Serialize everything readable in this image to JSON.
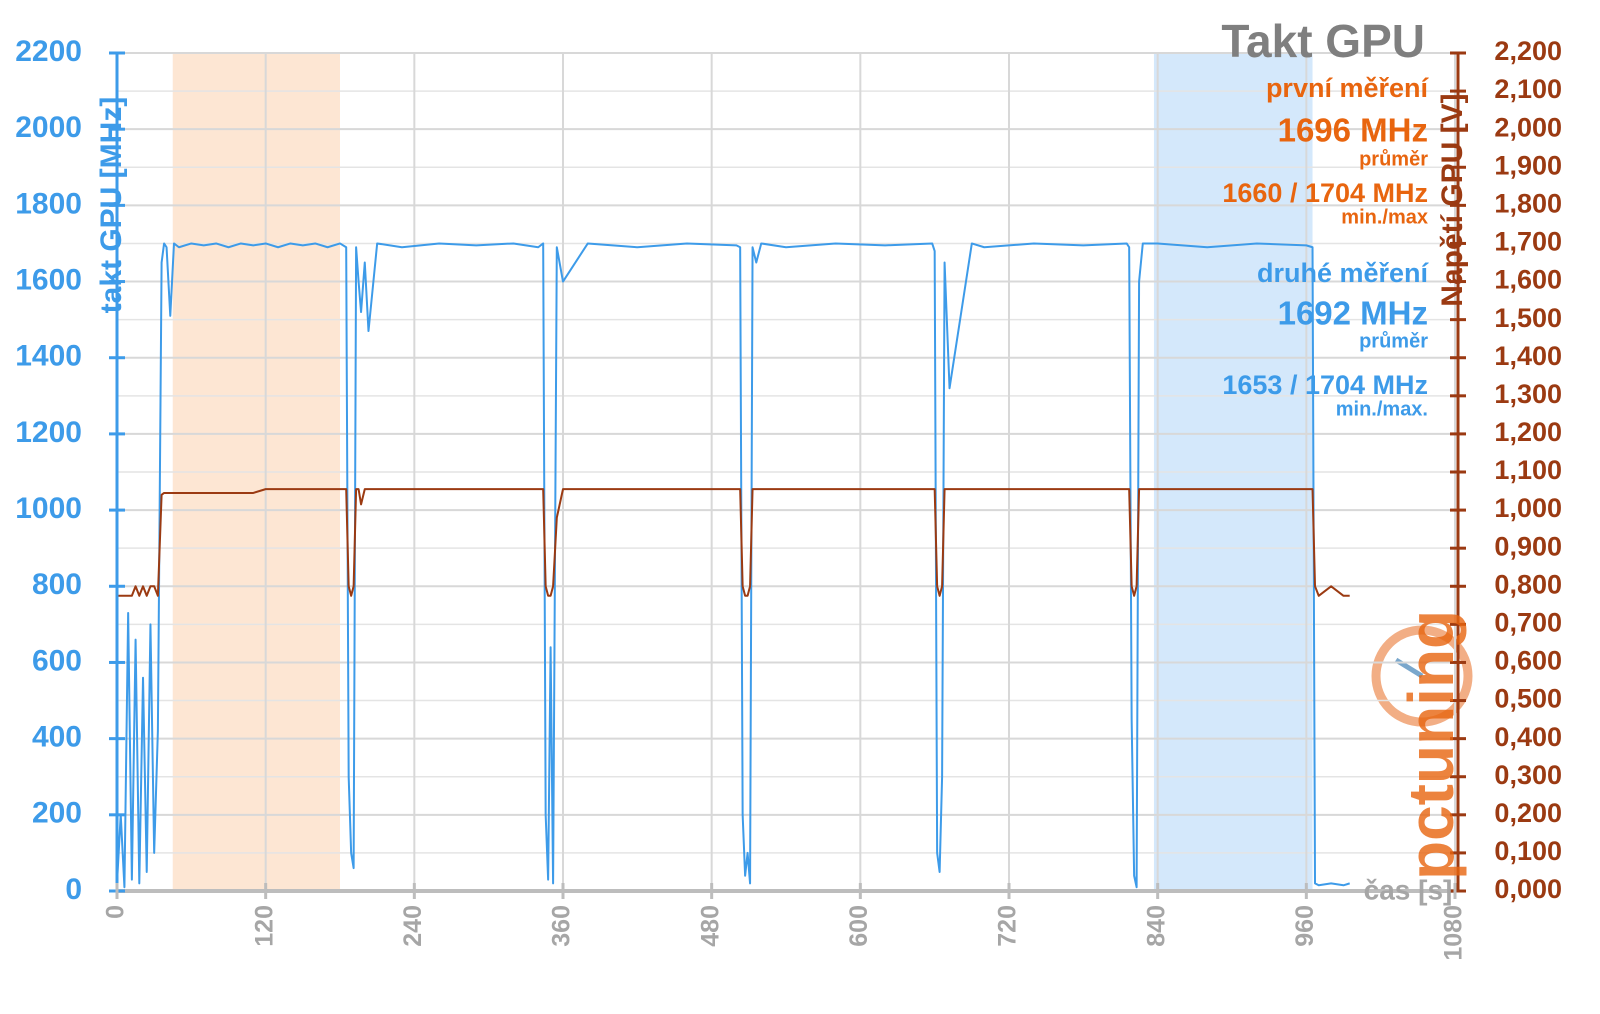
{
  "chart_data": {
    "type": "line",
    "title": "Takt GPU",
    "x_label": "čas [s]",
    "y_label": "takt GPU [MHz]",
    "y2_label": "Napětí GPU [V]",
    "logo": "pctuning",
    "annotations": [
      {
        "text": "první měření",
        "color": "#e8650f"
      },
      {
        "text": "1696 MHz",
        "color": "#e8650f"
      },
      {
        "text": "průměr",
        "color": "#e8650f"
      },
      {
        "text": "1660 / 1704 MHz",
        "color": "#e8650f"
      },
      {
        "text": "min./max",
        "color": "#e8650f"
      },
      {
        "text": "druhé měření",
        "color": "#3d9be9"
      },
      {
        "text": "1692 MHz",
        "color": "#3d9be9"
      },
      {
        "text": "průměr",
        "color": "#3d9be9"
      },
      {
        "text": "1653 / 1704 MHz",
        "color": "#3d9be9"
      },
      {
        "text": "min./max.",
        "color": "#3d9be9"
      }
    ],
    "highlights": [
      {
        "start": 45,
        "end": 180,
        "color": "#fde6d3"
      },
      {
        "start": 837,
        "end": 965,
        "color": "#d4e8fb"
      }
    ],
    "grid": true,
    "xlim": [
      0,
      1080
    ],
    "xticks": [
      0,
      120,
      240,
      360,
      480,
      600,
      720,
      840,
      960,
      1080
    ],
    "ylim": [
      0,
      2200
    ],
    "yticks": [
      0,
      200,
      400,
      600,
      800,
      1000,
      1200,
      1400,
      1600,
      1800,
      2000,
      2200
    ],
    "y2lim": [
      0,
      2.2
    ],
    "y2ticks": [
      {
        "value": 0,
        "label": "0,000"
      },
      {
        "value": 0.1,
        "label": "0,100"
      },
      {
        "value": 0.2,
        "label": "0,200"
      },
      {
        "value": 0.3,
        "label": "0,300"
      },
      {
        "value": 0.4,
        "label": "0,400"
      },
      {
        "value": 0.5,
        "label": "0,500"
      },
      {
        "value": 0.6,
        "label": "0,600"
      },
      {
        "value": 0.7,
        "label": "0,700"
      },
      {
        "value": 0.8,
        "label": "0,800"
      },
      {
        "value": 0.9,
        "label": "0,900"
      },
      {
        "value": 1.0,
        "label": "1,000"
      },
      {
        "value": 1.1,
        "label": "1,100"
      },
      {
        "value": 1.2,
        "label": "1,200"
      },
      {
        "value": 1.3,
        "label": "1,300"
      },
      {
        "value": 1.4,
        "label": "1,400"
      },
      {
        "value": 1.5,
        "label": "1,500"
      },
      {
        "value": 1.6,
        "label": "1,600"
      },
      {
        "value": 1.7,
        "label": "1,700"
      },
      {
        "value": 1.8,
        "label": "1,800"
      },
      {
        "value": 1.9,
        "label": "1,900"
      },
      {
        "value": 2.0,
        "label": "2,000"
      },
      {
        "value": 2.1,
        "label": "2,100"
      },
      {
        "value": 2.2,
        "label": "2,200"
      }
    ],
    "x": [
      0,
      3,
      6,
      9,
      12,
      15,
      18,
      21,
      24,
      27,
      30,
      33,
      36,
      38,
      40,
      43,
      46,
      50,
      60,
      70,
      80,
      90,
      100,
      110,
      120,
      130,
      140,
      150,
      160,
      170,
      180,
      185,
      187,
      189,
      191,
      193,
      195,
      197,
      200,
      203,
      210,
      230,
      260,
      290,
      320,
      340,
      344,
      346,
      348,
      350,
      352,
      355,
      360,
      380,
      420,
      460,
      500,
      503,
      505,
      507,
      509,
      511,
      513,
      516,
      520,
      540,
      580,
      620,
      658,
      660,
      662,
      664,
      666,
      668,
      672,
      690,
      700,
      740,
      780,
      815,
      817,
      819,
      821,
      823,
      825,
      828,
      840,
      880,
      920,
      960,
      965,
      967,
      970,
      980,
      990,
      995
    ],
    "series": [
      {
        "color": "#3d9be9",
        "axis": "y",
        "values": [
          20,
          200,
          10,
          730,
          30,
          660,
          20,
          560,
          50,
          700,
          100,
          420,
          1650,
          1700,
          1690,
          1510,
          1700,
          1690,
          1700,
          1695,
          1700,
          1690,
          1700,
          1695,
          1700,
          1690,
          1700,
          1695,
          1700,
          1690,
          1700,
          1690,
          300,
          100,
          60,
          1690,
          1600,
          1520,
          1650,
          1470,
          1700,
          1690,
          1700,
          1695,
          1700,
          1690,
          1700,
          200,
          30,
          640,
          20,
          1690,
          1600,
          1700,
          1690,
          1700,
          1695,
          1690,
          200,
          40,
          100,
          20,
          1690,
          1650,
          1700,
          1690,
          1700,
          1695,
          1700,
          1680,
          100,
          50,
          300,
          1650,
          1320,
          1700,
          1690,
          1700,
          1695,
          1700,
          1690,
          450,
          40,
          10,
          1600,
          1700,
          1700,
          1690,
          1700,
          1695,
          1690,
          20,
          15,
          20,
          15,
          20
        ]
      },
      {
        "color": "#9b3a12",
        "axis": "y2",
        "values": [
          0.775,
          0.775,
          0.775,
          0.775,
          0.775,
          0.8,
          0.775,
          0.8,
          0.775,
          0.8,
          0.8,
          0.775,
          1.04,
          1.045,
          1.045,
          1.045,
          1.045,
          1.045,
          1.045,
          1.045,
          1.045,
          1.045,
          1.045,
          1.045,
          1.055,
          1.055,
          1.055,
          1.055,
          1.055,
          1.055,
          1.055,
          1.055,
          0.8,
          0.775,
          0.8,
          1.055,
          1.055,
          1.015,
          1.055,
          1.055,
          1.055,
          1.055,
          1.055,
          1.055,
          1.055,
          1.055,
          1.055,
          0.8,
          0.775,
          0.775,
          0.8,
          0.98,
          1.055,
          1.055,
          1.055,
          1.055,
          1.055,
          1.055,
          0.8,
          0.775,
          0.775,
          0.8,
          1.055,
          1.055,
          1.055,
          1.055,
          1.055,
          1.055,
          1.055,
          1.055,
          0.8,
          0.775,
          0.8,
          1.055,
          1.055,
          1.055,
          1.055,
          1.055,
          1.055,
          1.055,
          1.055,
          0.8,
          0.775,
          0.8,
          1.055,
          1.055,
          1.055,
          1.055,
          1.055,
          1.055,
          1.055,
          0.8,
          0.775,
          0.8,
          0.775,
          0.775
        ]
      }
    ]
  }
}
